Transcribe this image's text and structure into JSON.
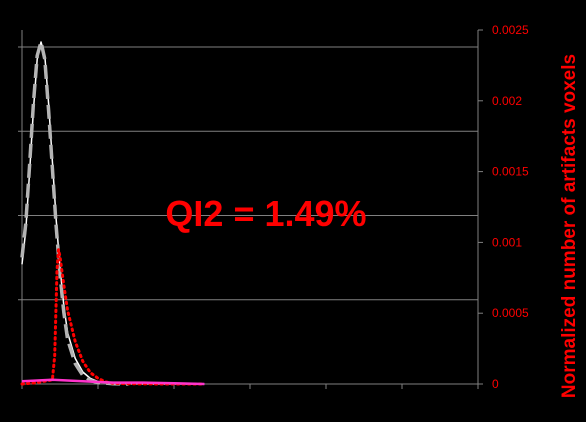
{
  "chart_data": {
    "type": "line",
    "y2label": "Normalized number of artifacts voxels",
    "y2lim": [
      0,
      0.0025
    ],
    "y2ticks": [
      "0",
      "0.0005",
      "0.001",
      "0.0015",
      "0.002",
      "0.0025"
    ],
    "y2tick_values": [
      0,
      0.0005,
      0.001,
      0.0015,
      0.002,
      0.0025
    ],
    "xlim": [
      0,
      600
    ],
    "x_tick_count": 6,
    "grid": "horizontal",
    "annotation": "QI2 = 1.49%",
    "colors": {
      "background": "#000000",
      "axis_text": "#ff0000",
      "gridline": "#808080",
      "white_curve": "#ffffff",
      "gray_dashed_curve": "#b4b4b4",
      "red_dotted_curve": "#ff0000",
      "pink_curve": "#ff33cc"
    },
    "series": [
      {
        "style": "white-solid",
        "axis": "primary",
        "x": [
          0,
          5,
          10,
          15,
          20,
          25,
          30,
          35,
          40,
          45,
          50,
          55,
          60,
          70,
          80,
          90,
          100,
          120,
          140,
          160,
          200,
          240
        ],
        "y": [
          0.35,
          0.45,
          0.62,
          0.8,
          0.95,
          1.0,
          0.96,
          0.82,
          0.65,
          0.48,
          0.34,
          0.23,
          0.15,
          0.075,
          0.035,
          0.016,
          0.007,
          0.002,
          0.0008,
          0.0003,
          0.0001,
          0
        ]
      },
      {
        "style": "gray-dashed",
        "axis": "primary",
        "x": [
          0,
          5,
          10,
          15,
          20,
          25,
          30,
          35,
          40,
          45,
          50,
          55,
          60,
          70,
          80,
          90,
          100,
          120,
          140
        ],
        "y": [
          0.37,
          0.47,
          0.64,
          0.82,
          0.96,
          1.0,
          0.95,
          0.8,
          0.63,
          0.46,
          0.32,
          0.21,
          0.13,
          0.06,
          0.025,
          0.01,
          0.004,
          0.0008,
          0
        ]
      },
      {
        "style": "red-dotted",
        "axis": "secondary",
        "x": [
          0,
          20,
          30,
          40,
          43,
          46,
          48,
          50,
          55,
          60,
          70,
          80,
          90,
          100,
          110,
          120,
          140,
          160,
          200,
          240
        ],
        "y": [
          0,
          1e-05,
          2e-05,
          3e-05,
          0.0002,
          0.0008,
          0.00095,
          0.0009,
          0.0007,
          0.00052,
          0.0003,
          0.00016,
          8e-05,
          4e-05,
          1.5e-05,
          5e-06,
          2e-06,
          1e-06,
          0,
          0
        ]
      },
      {
        "style": "pink-solid",
        "axis": "secondary",
        "x": [
          0,
          40,
          80,
          120,
          160,
          200,
          240
        ],
        "y": [
          2e-05,
          3e-05,
          2e-05,
          1e-05,
          1e-05,
          5e-06,
          0
        ]
      }
    ]
  }
}
